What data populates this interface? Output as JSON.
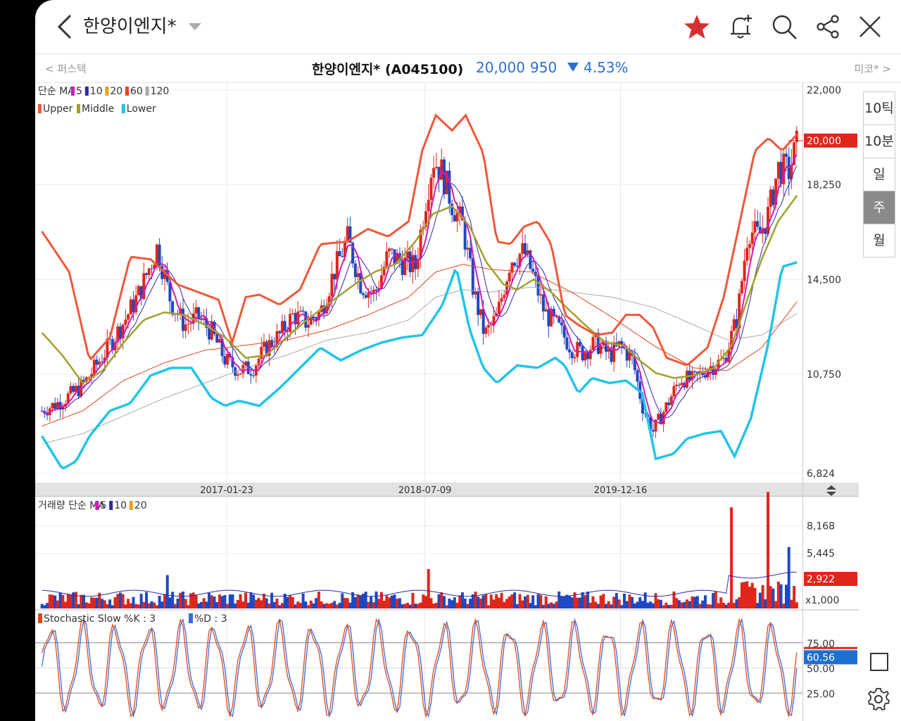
{
  "header": {
    "title": "한양이엔지*"
  },
  "subbar": {
    "prev": "< 퍼스텍",
    "next": "미코* >",
    "name": "한양이엔지* (A045100)",
    "price": "20,000",
    "change": "950",
    "percent": "4.53%"
  },
  "period_buttons": [
    {
      "label": "10틱",
      "active": false
    },
    {
      "label": "10분",
      "active": false
    },
    {
      "label": "일",
      "active": false
    },
    {
      "label": "주",
      "active": true
    },
    {
      "label": "월",
      "active": false
    }
  ],
  "colors": {
    "up": "#e0261b",
    "down": "#1f49c2",
    "upper_band": "#f0583a",
    "middle_band": "#a3a02a",
    "lower_band": "#22c4ea",
    "ma5": "#d21ab8",
    "ma10": "#2b2aa8",
    "ma20": "#e8a21a",
    "ma60": "#e0481a",
    "ma120": "#aaaaaa",
    "stoch_k": "#e0481a",
    "stoch_d": "#3b6ad8",
    "star": "#d63031"
  },
  "chart_data": [
    {
      "type": "candlestick",
      "panel": "price",
      "legend_ma": {
        "prefix": "단순 MA",
        "items": [
          "5",
          "10",
          "20",
          "60",
          "120"
        ]
      },
      "legend_bb": [
        "Upper",
        "Middle",
        "Lower"
      ],
      "y_ticks": [
        "22,000",
        "18,250",
        "14,500",
        "10,750",
        "6,824"
      ],
      "x_ticks": [
        "2017-01-23",
        "2018-07-09",
        "2019-12-16"
      ],
      "ylim": [
        6824,
        22000
      ],
      "x_range": [
        "2015-09",
        "2021-04"
      ],
      "current_price_label": "20,000",
      "current_price": 20000,
      "close_series": [
        [
          2015.7,
          9300
        ],
        [
          2015.85,
          9700
        ],
        [
          2016.0,
          10300
        ],
        [
          2016.15,
          11500
        ],
        [
          2016.3,
          12800
        ],
        [
          2016.42,
          14000
        ],
        [
          2016.55,
          15800
        ],
        [
          2016.65,
          13600
        ],
        [
          2016.75,
          12700
        ],
        [
          2016.85,
          13000
        ],
        [
          2016.95,
          12400
        ],
        [
          2017.05,
          11300
        ],
        [
          2017.15,
          10900
        ],
        [
          2017.25,
          11000
        ],
        [
          2017.35,
          11800
        ],
        [
          2017.45,
          12300
        ],
        [
          2017.55,
          13100
        ],
        [
          2017.65,
          12800
        ],
        [
          2017.75,
          13200
        ],
        [
          2017.85,
          14800
        ],
        [
          2017.95,
          16100
        ],
        [
          2018.05,
          14300
        ],
        [
          2018.15,
          13900
        ],
        [
          2018.25,
          15500
        ],
        [
          2018.35,
          15200
        ],
        [
          2018.45,
          15000
        ],
        [
          2018.52,
          17500
        ],
        [
          2018.58,
          19300
        ],
        [
          2018.65,
          18700
        ],
        [
          2018.72,
          17500
        ],
        [
          2018.8,
          16600
        ],
        [
          2018.88,
          14000
        ],
        [
          2018.96,
          12300
        ],
        [
          2019.05,
          13000
        ],
        [
          2019.15,
          15300
        ],
        [
          2019.25,
          15600
        ],
        [
          2019.32,
          14600
        ],
        [
          2019.4,
          13200
        ],
        [
          2019.5,
          12600
        ],
        [
          2019.6,
          11800
        ],
        [
          2019.68,
          11600
        ],
        [
          2019.78,
          12000
        ],
        [
          2019.88,
          11500
        ],
        [
          2019.96,
          11900
        ],
        [
          2020.05,
          11300
        ],
        [
          2020.12,
          9500
        ],
        [
          2020.2,
          8500
        ],
        [
          2020.3,
          9500
        ],
        [
          2020.4,
          10600
        ],
        [
          2020.5,
          10500
        ],
        [
          2020.6,
          11000
        ],
        [
          2020.72,
          11300
        ],
        [
          2020.82,
          13000
        ],
        [
          2020.9,
          16500
        ],
        [
          2020.98,
          16200
        ],
        [
          2021.05,
          17100
        ],
        [
          2021.12,
          18900
        ],
        [
          2021.2,
          18800
        ],
        [
          2021.27,
          20000
        ]
      ],
      "bollinger_upper": [
        [
          2015.7,
          16400
        ],
        [
          2015.9,
          14800
        ],
        [
          2016.05,
          11300
        ],
        [
          2016.2,
          12200
        ],
        [
          2016.35,
          15400
        ],
        [
          2016.5,
          15300
        ],
        [
          2016.7,
          14300
        ],
        [
          2016.85,
          14000
        ],
        [
          2017.0,
          13700
        ],
        [
          2017.1,
          12000
        ],
        [
          2017.2,
          13800
        ],
        [
          2017.3,
          13900
        ],
        [
          2017.45,
          13500
        ],
        [
          2017.6,
          14100
        ],
        [
          2017.75,
          15900
        ],
        [
          2017.95,
          16000
        ],
        [
          2018.1,
          16500
        ],
        [
          2018.25,
          16200
        ],
        [
          2018.4,
          16800
        ],
        [
          2018.5,
          19600
        ],
        [
          2018.6,
          21000
        ],
        [
          2018.72,
          20400
        ],
        [
          2018.82,
          21000
        ],
        [
          2018.95,
          19500
        ],
        [
          2019.05,
          16000
        ],
        [
          2019.15,
          15900
        ],
        [
          2019.25,
          16600
        ],
        [
          2019.35,
          16800
        ],
        [
          2019.45,
          15900
        ],
        [
          2019.55,
          13100
        ],
        [
          2019.65,
          12700
        ],
        [
          2019.78,
          12300
        ],
        [
          2019.9,
          12400
        ],
        [
          2020.0,
          13100
        ],
        [
          2020.1,
          13100
        ],
        [
          2020.2,
          12600
        ],
        [
          2020.3,
          11400
        ],
        [
          2020.45,
          11100
        ],
        [
          2020.6,
          11800
        ],
        [
          2020.72,
          13800
        ],
        [
          2020.82,
          16300
        ],
        [
          2020.95,
          19600
        ],
        [
          2021.05,
          20100
        ],
        [
          2021.15,
          19600
        ],
        [
          2021.27,
          20300
        ]
      ],
      "bollinger_middle": [
        [
          2015.7,
          12400
        ],
        [
          2015.85,
          11500
        ],
        [
          2016.0,
          10400
        ],
        [
          2016.15,
          10900
        ],
        [
          2016.3,
          12000
        ],
        [
          2016.45,
          12900
        ],
        [
          2016.6,
          13200
        ],
        [
          2016.75,
          13100
        ],
        [
          2016.9,
          12700
        ],
        [
          2017.05,
          12200
        ],
        [
          2017.2,
          11400
        ],
        [
          2017.35,
          11500
        ],
        [
          2017.5,
          12200
        ],
        [
          2017.65,
          12900
        ],
        [
          2017.85,
          13700
        ],
        [
          2018.0,
          14300
        ],
        [
          2018.15,
          14800
        ],
        [
          2018.3,
          15100
        ],
        [
          2018.45,
          16000
        ],
        [
          2018.58,
          17100
        ],
        [
          2018.72,
          17400
        ],
        [
          2018.85,
          16600
        ],
        [
          2018.97,
          15200
        ],
        [
          2019.1,
          14300
        ],
        [
          2019.2,
          14100
        ],
        [
          2019.32,
          14500
        ],
        [
          2019.45,
          14000
        ],
        [
          2019.58,
          13300
        ],
        [
          2019.72,
          12600
        ],
        [
          2019.85,
          12000
        ],
        [
          2019.98,
          11900
        ],
        [
          2020.1,
          11300
        ],
        [
          2020.22,
          10800
        ],
        [
          2020.35,
          10600
        ],
        [
          2020.5,
          10700
        ],
        [
          2020.65,
          11000
        ],
        [
          2020.78,
          11900
        ],
        [
          2020.9,
          13800
        ],
        [
          2021.0,
          15300
        ],
        [
          2021.12,
          16800
        ],
        [
          2021.27,
          17900
        ]
      ],
      "bollinger_lower": [
        [
          2015.7,
          8300
        ],
        [
          2015.85,
          7000
        ],
        [
          2015.95,
          7300
        ],
        [
          2016.05,
          8300
        ],
        [
          2016.2,
          9300
        ],
        [
          2016.35,
          9600
        ],
        [
          2016.5,
          10700
        ],
        [
          2016.65,
          11000
        ],
        [
          2016.8,
          11000
        ],
        [
          2016.95,
          9800
        ],
        [
          2017.05,
          9500
        ],
        [
          2017.15,
          9700
        ],
        [
          2017.3,
          9500
        ],
        [
          2017.45,
          10200
        ],
        [
          2017.6,
          11000
        ],
        [
          2017.75,
          11800
        ],
        [
          2017.9,
          11300
        ],
        [
          2018.05,
          11700
        ],
        [
          2018.2,
          12000
        ],
        [
          2018.35,
          12200
        ],
        [
          2018.5,
          12300
        ],
        [
          2018.65,
          13500
        ],
        [
          2018.75,
          15000
        ],
        [
          2018.85,
          12500
        ],
        [
          2018.95,
          11000
        ],
        [
          2019.05,
          10400
        ],
        [
          2019.2,
          11100
        ],
        [
          2019.35,
          11000
        ],
        [
          2019.48,
          11400
        ],
        [
          2019.55,
          11100
        ],
        [
          2019.65,
          10000
        ],
        [
          2019.75,
          10600
        ],
        [
          2019.88,
          10400
        ],
        [
          2020.0,
          10500
        ],
        [
          2020.12,
          10000
        ],
        [
          2020.22,
          7400
        ],
        [
          2020.35,
          7600
        ],
        [
          2020.45,
          8200
        ],
        [
          2020.58,
          8400
        ],
        [
          2020.7,
          8500
        ],
        [
          2020.8,
          7500
        ],
        [
          2020.92,
          9000
        ],
        [
          2021.05,
          12000
        ],
        [
          2021.15,
          15000
        ],
        [
          2021.27,
          15200
        ]
      ],
      "ma60": [
        [
          2015.7,
          8700
        ],
        [
          2016.0,
          9300
        ],
        [
          2016.3,
          10500
        ],
        [
          2016.6,
          11200
        ],
        [
          2016.9,
          11700
        ],
        [
          2017.2,
          11900
        ],
        [
          2017.5,
          12100
        ],
        [
          2017.8,
          12500
        ],
        [
          2018.1,
          13100
        ],
        [
          2018.4,
          13800
        ],
        [
          2018.6,
          14800
        ],
        [
          2018.8,
          15100
        ],
        [
          2019.0,
          14900
        ],
        [
          2019.3,
          14800
        ],
        [
          2019.6,
          14000
        ],
        [
          2019.9,
          13000
        ],
        [
          2020.2,
          11900
        ],
        [
          2020.5,
          11000
        ],
        [
          2020.75,
          10900
        ],
        [
          2021.0,
          11800
        ],
        [
          2021.27,
          13700
        ]
      ],
      "ma120": [
        [
          2015.7,
          8000
        ],
        [
          2016.0,
          8400
        ],
        [
          2016.3,
          9100
        ],
        [
          2016.6,
          9800
        ],
        [
          2016.9,
          10400
        ],
        [
          2017.2,
          11000
        ],
        [
          2017.5,
          11500
        ],
        [
          2017.8,
          12100
        ],
        [
          2018.1,
          12400
        ],
        [
          2018.4,
          12900
        ],
        [
          2018.6,
          13800
        ],
        [
          2018.8,
          14100
        ],
        [
          2019.0,
          14000
        ],
        [
          2019.3,
          14200
        ],
        [
          2019.6,
          14000
        ],
        [
          2019.9,
          13800
        ],
        [
          2020.2,
          13400
        ],
        [
          2020.5,
          12700
        ],
        [
          2020.75,
          12100
        ],
        [
          2021.0,
          12300
        ],
        [
          2021.27,
          13200
        ]
      ]
    },
    {
      "type": "bar",
      "panel": "volume",
      "legend_ma": {
        "prefix": "거래량 단순 MA",
        "items": [
          "5",
          "10",
          "20"
        ]
      },
      "y_ticks": [
        "8,168",
        "5,445",
        "2,922",
        "x1,000"
      ],
      "current_label": "2,922",
      "unit": "x1,000",
      "spikes": [
        [
          2016.62,
          3300
        ],
        [
          2018.55,
          3900
        ],
        [
          2020.78,
          10000
        ],
        [
          2021.05,
          7200
        ],
        [
          2021.2,
          3800
        ]
      ]
    },
    {
      "type": "line",
      "panel": "stochastic",
      "legend": {
        "k": "Stochastic Slow %K : 3",
        "d": "%D : 3"
      },
      "y_ticks": [
        "75.00",
        "50.00",
        "25.00"
      ],
      "current_label": "60.56",
      "current_value": 60.56,
      "ylim": [
        0,
        100
      ]
    }
  ]
}
